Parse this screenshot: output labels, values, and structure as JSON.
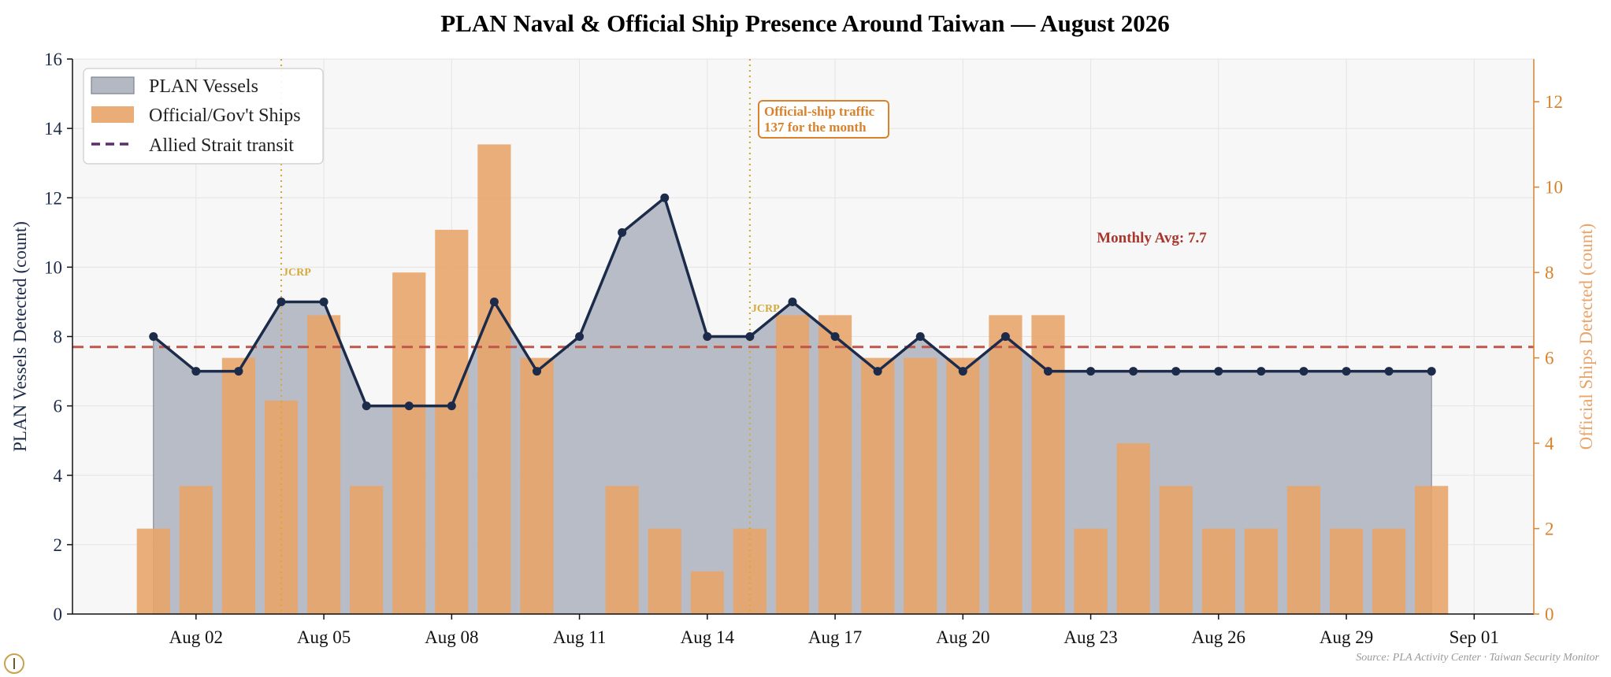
{
  "chart_data": {
    "type": "bar+line+area",
    "title": "PLAN Naval & Official Ship Presence Around Taiwan — August 2026",
    "ylabel_left": "PLAN Vessels Detected (count)",
    "ylabel_right": "Official Ships Detected (count)",
    "x_tick_labels": [
      "Aug 02",
      "Aug 05",
      "Aug 08",
      "Aug 11",
      "Aug 14",
      "Aug 17",
      "Aug 20",
      "Aug 23",
      "Aug 26",
      "Aug 29",
      "Sep 01"
    ],
    "x_tick_days": [
      2,
      5,
      8,
      11,
      14,
      17,
      20,
      23,
      26,
      29,
      32
    ],
    "xlim_days": [
      -0.9,
      33.4
    ],
    "ylim_left": [
      0,
      16
    ],
    "ylim_right": [
      0,
      13
    ],
    "yticks_left": [
      0,
      2,
      4,
      6,
      8,
      10,
      12,
      14,
      16
    ],
    "yticks_right": [
      0,
      2,
      4,
      6,
      8,
      10,
      12
    ],
    "days": [
      1,
      2,
      3,
      4,
      5,
      6,
      7,
      8,
      9,
      10,
      11,
      12,
      13,
      14,
      15,
      16,
      17,
      18,
      19,
      20,
      21,
      22,
      23,
      24,
      25,
      26,
      27,
      28,
      29,
      30,
      31
    ],
    "series": [
      {
        "name": "PLAN Vessels",
        "axis": "left",
        "style": "line+area",
        "color": "#1c2b4a",
        "fill": "#b4b8c3",
        "values": [
          8,
          7,
          7,
          9,
          9,
          6,
          6,
          6,
          9,
          7,
          8,
          11,
          12,
          8,
          8,
          9,
          8,
          7,
          8,
          7,
          8,
          7,
          7,
          7,
          7,
          7,
          7,
          7,
          7,
          7,
          7
        ]
      },
      {
        "name": "Official/Gov't Ships",
        "axis": "right",
        "style": "bar",
        "color": "#e8a469",
        "values": [
          2,
          3,
          6,
          5,
          7,
          3,
          8,
          9,
          11,
          6,
          0,
          3,
          2,
          1,
          2,
          7,
          7,
          6,
          6,
          6,
          7,
          7,
          2,
          4,
          3,
          2,
          2,
          3,
          2,
          2,
          3
        ]
      }
    ],
    "legend": {
      "placement": "top-left",
      "entries": [
        {
          "label": "PLAN Vessels",
          "kind": "patch",
          "color": "#b4b8c3",
          "edge": "#7d8291"
        },
        {
          "label": "Official/Gov't Ships",
          "kind": "patch",
          "color": "#e8a469",
          "edge": "#e8a469"
        },
        {
          "label": "Allied Strait transit",
          "kind": "dashed",
          "color": "#5b2d6e"
        }
      ]
    },
    "hlines": [
      {
        "value": 7.7,
        "axis": "left",
        "color": "#c0554a",
        "style": "dashed",
        "label": "Monthly Avg: 7.7"
      }
    ],
    "vlines": [
      {
        "day": 4,
        "color": "#d4aa3c",
        "style": "dotted",
        "label": "JCRP"
      },
      {
        "day": 15,
        "color": "#d4aa3c",
        "style": "dotted",
        "label": "JCRP"
      }
    ],
    "annotation_box": {
      "lines": [
        "Official-ship traffic",
        "137 for the month"
      ],
      "color": "#d9822b"
    },
    "source": "Source: PLA Activity Center · Taiwan Security Monitor",
    "grid": true
  },
  "colors": {
    "plot_bg": "#f7f7f7",
    "grid": "#e4e4e4",
    "left_axis": "#1c2b4a",
    "right_axis": "#d9822b",
    "right_label": "#e8a469"
  }
}
